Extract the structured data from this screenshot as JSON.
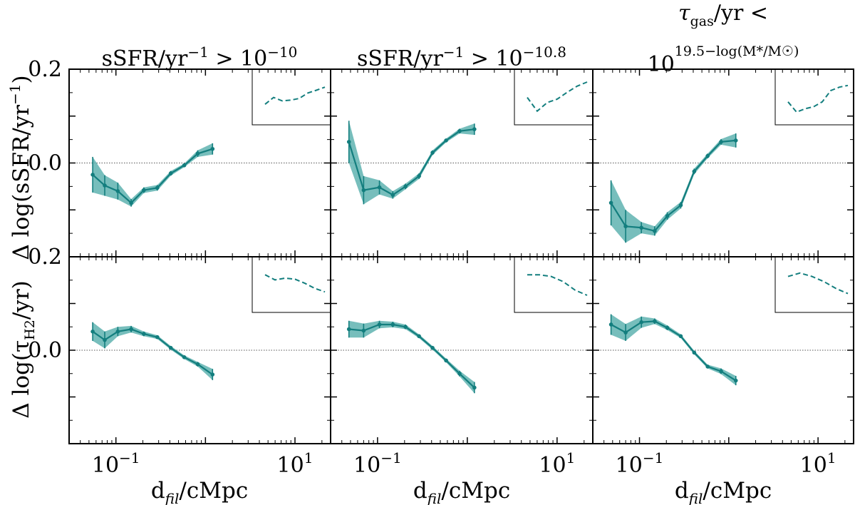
{
  "chart_data": {
    "type": "line",
    "layout": "2 rows x 3 columns, shared axes, inset panels top-right",
    "color": "#137e7e",
    "band_color": "#5fb3b0",
    "xscale": "log",
    "xlim": [
      0.03,
      25
    ],
    "xticks": [
      {
        "value": 0.1,
        "base": "10",
        "exp": "−1"
      },
      {
        "value": 10,
        "base": "10",
        "exp": "1"
      }
    ],
    "xlabel": {
      "main": "d",
      "sub": "fil",
      "rest": "/cMpc"
    },
    "col_titles": [
      {
        "main": "sSFR/yr",
        "sup1": "−1",
        "mid": " > 10",
        "sup2": "−10"
      },
      {
        "main": "sSFR/yr",
        "sup1": "−1",
        "mid": " > 10",
        "sup2": "−10.8"
      },
      {
        "line1_tau": "τ",
        "line1_sub": "gas",
        "line1_rest": "/yr <",
        "line2_base": "10",
        "line2_exp": "19.5−log(M*/M☉)"
      }
    ],
    "rows": [
      {
        "ylabel": {
          "prefix": "Δ log(sSFR/yr",
          "sup": "−1",
          "suffix": ")"
        },
        "ylim": [
          -0.2,
          0.2
        ],
        "yticks": [
          "0.2",
          "0.0"
        ],
        "panels": [
          {
            "x": [
              0.055,
              0.075,
              0.105,
              0.148,
              0.205,
              0.29,
              0.41,
              0.58,
              0.82,
              1.2
            ],
            "y": [
              -0.025,
              -0.048,
              -0.06,
              -0.085,
              -0.058,
              -0.053,
              -0.022,
              -0.005,
              0.02,
              0.03
            ],
            "err": [
              0.038,
              0.022,
              0.018,
              0.008,
              0.006,
              0.006,
              0.005,
              0.004,
              0.007,
              0.012
            ],
            "inset": [
              0.35,
              0.55,
              0.45,
              0.47,
              0.52,
              0.68,
              0.76,
              0.85
            ]
          },
          {
            "x": [
              0.048,
              0.07,
              0.105,
              0.148,
              0.205,
              0.29,
              0.41,
              0.58,
              0.82,
              1.2
            ],
            "y": [
              0.045,
              -0.058,
              -0.052,
              -0.068,
              -0.05,
              -0.028,
              0.022,
              0.048,
              0.068,
              0.072
            ],
            "err": [
              0.045,
              0.03,
              0.015,
              0.008,
              0.006,
              0.006,
              0.005,
              0.004,
              0.005,
              0.012
            ],
            "inset": [
              0.55,
              0.15,
              0.4,
              0.5,
              0.7,
              0.88,
              1.0
            ]
          },
          {
            "x": [
              0.048,
              0.07,
              0.105,
              0.148,
              0.205,
              0.29,
              0.41,
              0.58,
              0.82,
              1.2
            ],
            "y": [
              -0.085,
              -0.135,
              -0.138,
              -0.145,
              -0.113,
              -0.09,
              -0.018,
              0.015,
              0.045,
              0.048
            ],
            "err": [
              0.048,
              0.035,
              0.012,
              0.01,
              0.008,
              0.007,
              0.006,
              0.005,
              0.006,
              0.015
            ],
            "inset": [
              0.42,
              0.12,
              0.22,
              0.28,
              0.42,
              0.75,
              0.85,
              0.9
            ]
          }
        ]
      },
      {
        "ylabel": {
          "prefix": "Δ log(τ",
          "sub": "H2",
          "suffix": "/yr)"
        },
        "ylim": [
          -0.2,
          0.2
        ],
        "yticks": [
          "0.2",
          "0.0"
        ],
        "panels": [
          {
            "x": [
              0.055,
              0.075,
              0.105,
              0.148,
              0.205,
              0.29,
              0.41,
              0.58,
              0.82,
              1.2
            ],
            "y": [
              0.04,
              0.022,
              0.04,
              0.045,
              0.035,
              0.028,
              0.005,
              -0.015,
              -0.03,
              -0.052
            ],
            "err": [
              0.02,
              0.018,
              0.01,
              0.007,
              0.005,
              0.004,
              0.004,
              0.004,
              0.005,
              0.012
            ],
            "inset": [
              0.85,
              0.7,
              0.75,
              0.72,
              0.6,
              0.45,
              0.35
            ]
          },
          {
            "x": [
              0.048,
              0.07,
              0.105,
              0.148,
              0.205,
              0.29,
              0.41,
              0.58,
              0.82,
              1.2
            ],
            "y": [
              0.045,
              0.042,
              0.055,
              0.055,
              0.05,
              0.03,
              0.005,
              -0.022,
              -0.05,
              -0.08
            ],
            "err": [
              0.018,
              0.015,
              0.008,
              0.006,
              0.005,
              0.004,
              0.004,
              0.004,
              0.006,
              0.012
            ],
            "inset": [
              0.85,
              0.85,
              0.8,
              0.65,
              0.4,
              0.25
            ]
          },
          {
            "x": [
              0.048,
              0.07,
              0.105,
              0.148,
              0.205,
              0.29,
              0.41,
              0.58,
              0.82,
              1.2
            ],
            "y": [
              0.055,
              0.038,
              0.06,
              0.062,
              0.048,
              0.03,
              -0.005,
              -0.035,
              -0.045,
              -0.065
            ],
            "err": [
              0.022,
              0.018,
              0.012,
              0.006,
              0.005,
              0.004,
              0.004,
              0.004,
              0.006,
              0.01
            ],
            "inset": [
              0.8,
              0.9,
              0.8,
              0.65,
              0.45,
              0.3
            ]
          }
        ]
      }
    ]
  }
}
